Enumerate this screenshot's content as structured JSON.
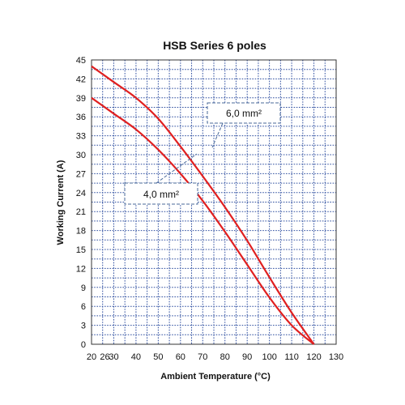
{
  "chart_data": {
    "type": "line",
    "title": "HSB Series 6 poles",
    "xlabel": "Ambient Temperature (°C)",
    "ylabel": "Working Current (A)",
    "xlim": [
      20,
      130
    ],
    "ylim": [
      0,
      45
    ],
    "x_ticks": [
      "20",
      "26",
      "30",
      "40",
      "50",
      "60",
      "70",
      "80",
      "90",
      "100",
      "110",
      "120",
      "130"
    ],
    "x_tick_values": [
      20,
      26,
      30,
      40,
      50,
      60,
      70,
      80,
      90,
      100,
      110,
      120,
      130
    ],
    "y_ticks": [
      "0",
      "3",
      "6",
      "9",
      "12",
      "15",
      "18",
      "21",
      "24",
      "27",
      "30",
      "33",
      "36",
      "39",
      "42",
      "45"
    ],
    "y_tick_values": [
      0,
      3,
      6,
      9,
      12,
      15,
      18,
      21,
      24,
      27,
      30,
      33,
      36,
      39,
      42,
      45
    ],
    "grid": true,
    "line_color": "#e02020",
    "grid_color": "#2f4fa0",
    "series": [
      {
        "name": "6,0 mm²",
        "x": [
          20,
          30,
          40,
          50,
          60,
          70,
          80,
          90,
          100,
          110,
          120
        ],
        "y": [
          44,
          41.5,
          39,
          35.7,
          31.3,
          26.6,
          21.7,
          16.4,
          10.6,
          5,
          0
        ]
      },
      {
        "name": "4,0 mm²",
        "x": [
          20,
          30,
          40,
          50,
          60,
          70,
          80,
          90,
          100,
          110,
          120
        ],
        "y": [
          39,
          36.5,
          34,
          30.8,
          27,
          22.7,
          17.8,
          12.6,
          7.4,
          3,
          0
        ]
      }
    ],
    "annotations": [
      {
        "text": "6,0 mm²",
        "series": 0
      },
      {
        "text": "4,0 mm²",
        "series": 1
      }
    ]
  }
}
